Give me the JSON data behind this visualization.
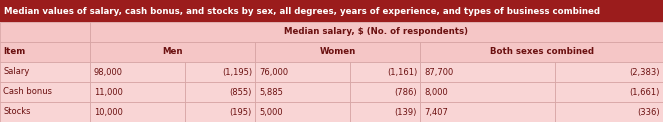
{
  "title": "Median values of salary, cash bonus, and stocks by sex, all degrees, years of experience, and types of business combined",
  "title_bg": "#9B1C1C",
  "title_color": "#FFFFFF",
  "title_fontsize": 6.2,
  "header1_text": "Median salary, $ (No. of respondents)",
  "header1_bg": "#F5C6C6",
  "header2_bg": "#F5C6C6",
  "row_bg": "#F9D5D5",
  "rows": [
    [
      "Salary",
      "98,000",
      "(1,195)",
      "76,000",
      "(1,161)",
      "87,700",
      "(2,383)"
    ],
    [
      "Cash bonus",
      "11,000",
      "(855)",
      "5,885",
      "(786)",
      "8,000",
      "(1,661)"
    ],
    [
      "Stocks",
      "10,000",
      "(195)",
      "5,000",
      "(139)",
      "7,407",
      "(336)"
    ]
  ],
  "col_groups": [
    "Men",
    "Women",
    "Both sexes combined"
  ],
  "item_col_label": "Item",
  "font_color": "#6B1010",
  "border_color": "#D4A0A0",
  "figsize": [
    6.63,
    1.22
  ],
  "dpi": 100
}
